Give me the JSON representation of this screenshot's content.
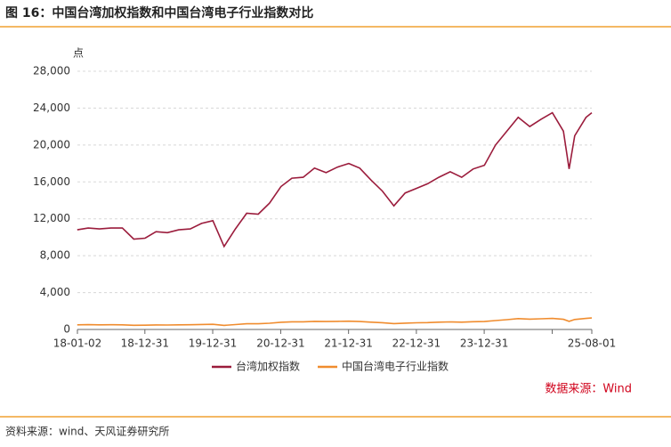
{
  "header": {
    "title": "图 16：中国台湾加权指数和中国台湾电子行业指数对比"
  },
  "footer": {
    "source": "资料来源：wind、天风证券研究所"
  },
  "chart_data": {
    "type": "line",
    "y_label": "点",
    "note": "数据来源：Wind",
    "x": [
      "2018-01",
      "2018-03",
      "2018-05",
      "2018-07",
      "2018-09",
      "2018-11",
      "2019-01",
      "2019-03",
      "2019-05",
      "2019-07",
      "2019-09",
      "2019-11",
      "2020-01",
      "2020-03",
      "2020-05",
      "2020-07",
      "2020-09",
      "2020-11",
      "2021-01",
      "2021-03",
      "2021-05",
      "2021-07",
      "2021-09",
      "2021-11",
      "2022-01",
      "2022-03",
      "2022-05",
      "2022-07",
      "2022-09",
      "2022-11",
      "2023-01",
      "2023-03",
      "2023-05",
      "2023-07",
      "2023-09",
      "2023-11",
      "2024-01",
      "2024-03",
      "2024-05",
      "2024-07",
      "2024-09",
      "2024-11",
      "2025-01",
      "2025-03",
      "2025-04",
      "2025-05",
      "2025-07",
      "2025-08"
    ],
    "series": [
      {
        "name": "台湾加权指数",
        "color": "#9b1c3c",
        "values": [
          10800,
          11000,
          10900,
          11000,
          11000,
          9800,
          9900,
          10600,
          10500,
          10800,
          10900,
          11500,
          11800,
          9000,
          10900,
          12600,
          12500,
          13700,
          15500,
          16400,
          16500,
          17500,
          17000,
          17600,
          18000,
          17500,
          16200,
          15000,
          13400,
          14800,
          15300,
          15800,
          16500,
          17100,
          16500,
          17400,
          17800,
          20000,
          21500,
          23000,
          22000,
          22800,
          23500,
          21500,
          17400,
          21000,
          23000,
          23500
        ]
      },
      {
        "name": "中国台湾电子行业指数",
        "color": "#f08c2e",
        "values": [
          500,
          520,
          500,
          510,
          500,
          450,
          460,
          490,
          480,
          500,
          510,
          540,
          560,
          440,
          530,
          620,
          620,
          680,
          780,
          830,
          830,
          880,
          860,
          880,
          900,
          860,
          790,
          730,
          640,
          690,
          720,
          740,
          790,
          820,
          790,
          840,
          860,
          970,
          1060,
          1180,
          1120,
          1160,
          1200,
          1100,
          880,
          1080,
          1200,
          1250
        ]
      }
    ],
    "xlim": [
      "2018-01-02",
      "2025-08-01"
    ],
    "xticks": [
      {
        "value": "2018-01-02",
        "label": "18-01-02"
      },
      {
        "value": "2018-12-31",
        "label": "18-12-31"
      },
      {
        "value": "2019-12-31",
        "label": "19-12-31"
      },
      {
        "value": "2020-12-31",
        "label": "20-12-31"
      },
      {
        "value": "2021-12-31",
        "label": "21-12-31"
      },
      {
        "value": "2022-12-31",
        "label": "22-12-31"
      },
      {
        "value": "2023-12-31",
        "label": "23-12-31"
      },
      {
        "value": "2024-12-31",
        "label": null
      },
      {
        "value": "2025-08-01",
        "label": "25-08-01"
      }
    ],
    "ylim": [
      0,
      28000
    ],
    "yticks": [
      0,
      {
        "value": 4000,
        "label": "4,000"
      },
      {
        "value": 8000,
        "label": "8,000"
      },
      {
        "value": 12000,
        "label": "12,000"
      },
      {
        "value": 16000,
        "label": "16,000"
      },
      {
        "value": 20000,
        "label": "20,000"
      },
      {
        "value": 24000,
        "label": "24,000"
      },
      {
        "value": 28000,
        "label": "28,000"
      }
    ],
    "grid": true
  }
}
